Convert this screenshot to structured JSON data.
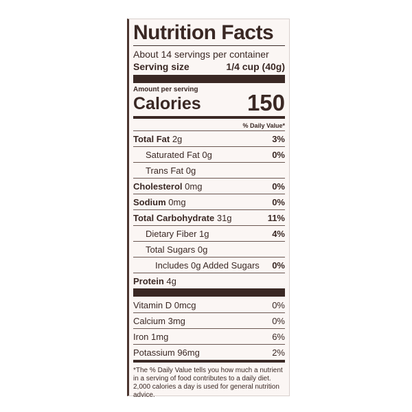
{
  "label": {
    "title": "Nutrition Facts",
    "servings": "About 14 servings per container",
    "serving_size": {
      "label": "Serving size",
      "value": "1/4 cup (40g)"
    },
    "amount_per_serving": "Amount per serving",
    "calories": {
      "label": "Calories",
      "value": "150"
    },
    "daily_value_header": "% Daily Value*",
    "nutrients": [
      {
        "name": "Total Fat",
        "amount": "2g",
        "dv": "3%"
      },
      {
        "name": "Saturated Fat",
        "amount": "0g",
        "dv": "0%"
      },
      {
        "name": "Trans Fat",
        "amount": "0g"
      },
      {
        "name": "Cholesterol",
        "amount": "0mg",
        "dv": "0%"
      },
      {
        "name": "Sodium",
        "amount": "0mg",
        "dv": "0%"
      },
      {
        "name": "Total Carbohydrate",
        "amount": "31g",
        "dv": "11%"
      },
      {
        "name": "Dietary Fiber",
        "amount": "1g",
        "dv": "4%"
      },
      {
        "name": "Total Sugars",
        "amount": "0g"
      },
      {
        "name": "Includes 0g Added Sugars",
        "dv": "0%"
      },
      {
        "name": "Protein",
        "amount": "4g"
      }
    ],
    "vitamins": [
      {
        "name": "Vitamin D",
        "amount": "0mcg",
        "dv": "0%"
      },
      {
        "name": "Calcium",
        "amount": "3mg",
        "dv": "0%"
      },
      {
        "name": "Iron",
        "amount": "1mg",
        "dv": "6%"
      },
      {
        "name": "Potassium",
        "amount": "96mg",
        "dv": "2%"
      }
    ],
    "footnote": "*The % Daily Value tells you how much a nutrient in a serving of food contributes to a daily diet. 2,000 calories a day is used for general nutrition advice."
  }
}
